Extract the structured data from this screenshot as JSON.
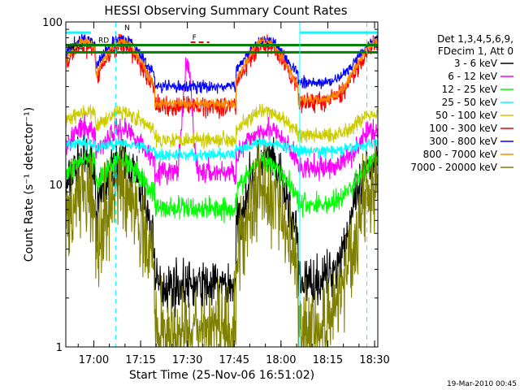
{
  "chart_data": {
    "type": "line",
    "title": "HESSI Observing Summary Count Rates",
    "xlabel": "Start Time (25-Nov-06 16:51:02)",
    "ylabel": "Count Rate (s⁻¹ detector⁻¹)",
    "x_scale": "time (minutes past 16:51:02)",
    "y_scale": "log",
    "xlim_minutes": [
      0,
      100
    ],
    "ylim": [
      1,
      100
    ],
    "x_ticks": [
      {
        "label": "17:00",
        "minute": 8.97
      },
      {
        "label": "17:15",
        "minute": 23.97
      },
      {
        "label": "17:30",
        "minute": 38.97
      },
      {
        "label": "17:45",
        "minute": 53.97
      },
      {
        "label": "18:00",
        "minute": 68.97
      },
      {
        "label": "18:15",
        "minute": 83.97
      },
      {
        "label": "18:30",
        "minute": 98.97
      }
    ],
    "y_ticks": [
      {
        "label": "1",
        "value": 1
      },
      {
        "label": "10",
        "value": 10
      },
      {
        "label": "100",
        "value": 100
      }
    ],
    "legend": {
      "placement": "right",
      "header": [
        "Det 1,3,4,5,6,9,",
        "FDecim 1, Att 0"
      ]
    },
    "series": [
      {
        "name": "3 - 6 keV",
        "color": "#000000",
        "day": 14,
        "night": 2.5,
        "noise": 0.25
      },
      {
        "name": "6 - 12 keV",
        "color": "#ff00ff",
        "day": 22,
        "night": 12.5,
        "noise": 0.12
      },
      {
        "name": "12 - 25 keV",
        "color": "#00ff00",
        "day": 14,
        "night": 7.5,
        "noise": 0.12
      },
      {
        "name": "25 - 50 keV",
        "color": "#00ffff",
        "day": 18,
        "night": 16,
        "noise": 0.06
      },
      {
        "name": "50 - 100 keV",
        "color": "#cccc00",
        "day": 28,
        "night": 20,
        "noise": 0.08
      },
      {
        "name": "100 - 300 keV",
        "color": "#ff0000",
        "day": 72,
        "night": 32,
        "noise": 0.1
      },
      {
        "name": "300 - 800 keV",
        "color": "#0000ff",
        "day": 78,
        "night": 42,
        "noise": 0.06
      },
      {
        "name": "800 - 7000 keV",
        "color": "#ff8800",
        "day": 76,
        "night": 33,
        "noise": 0.05
      },
      {
        "name": "7000 - 20000 keV",
        "color": "#808000",
        "day": 9.5,
        "night": 1.3,
        "noise": 0.45
      }
    ],
    "day_segments": [
      {
        "start": 0,
        "end": 9.5,
        "peak": 6,
        "width": 8
      },
      {
        "start": 9.5,
        "end": 28.5,
        "peak": 18,
        "width": 8
      },
      {
        "start": 54.5,
        "end": 74.5,
        "peak": 64,
        "width": 8
      },
      {
        "start": 74.5,
        "end": 100,
        "peak": 100,
        "width": 8
      }
    ],
    "flare": {
      "series": "6 - 12 keV",
      "peak_minute": 39,
      "peak_value": 55
    },
    "flags": [
      {
        "label": "N",
        "color": "#00ffff",
        "start": 0,
        "end": 8,
        "value": 86
      },
      {
        "label": "",
        "color": "#00ffff",
        "start": 75,
        "end": 100,
        "value": 86
      },
      {
        "label": "F",
        "color": "#ff0000",
        "start": 40,
        "end": 46,
        "value": 75
      },
      {
        "label": "RD",
        "color": "#008000",
        "start": 0,
        "end": 100,
        "value": 72
      },
      {
        "label": "RD4",
        "color": "#008000",
        "start": 0,
        "end": 100,
        "value": 65
      }
    ],
    "night_markers": [
      {
        "minute": 0,
        "style": "solid"
      },
      {
        "minute": 16,
        "style": "dashed"
      },
      {
        "minute": 75,
        "style": "solid"
      },
      {
        "minute": 96.5,
        "style": "dashed"
      }
    ]
  },
  "footer": {
    "timestamp": "19-Mar-2010 00:45"
  }
}
